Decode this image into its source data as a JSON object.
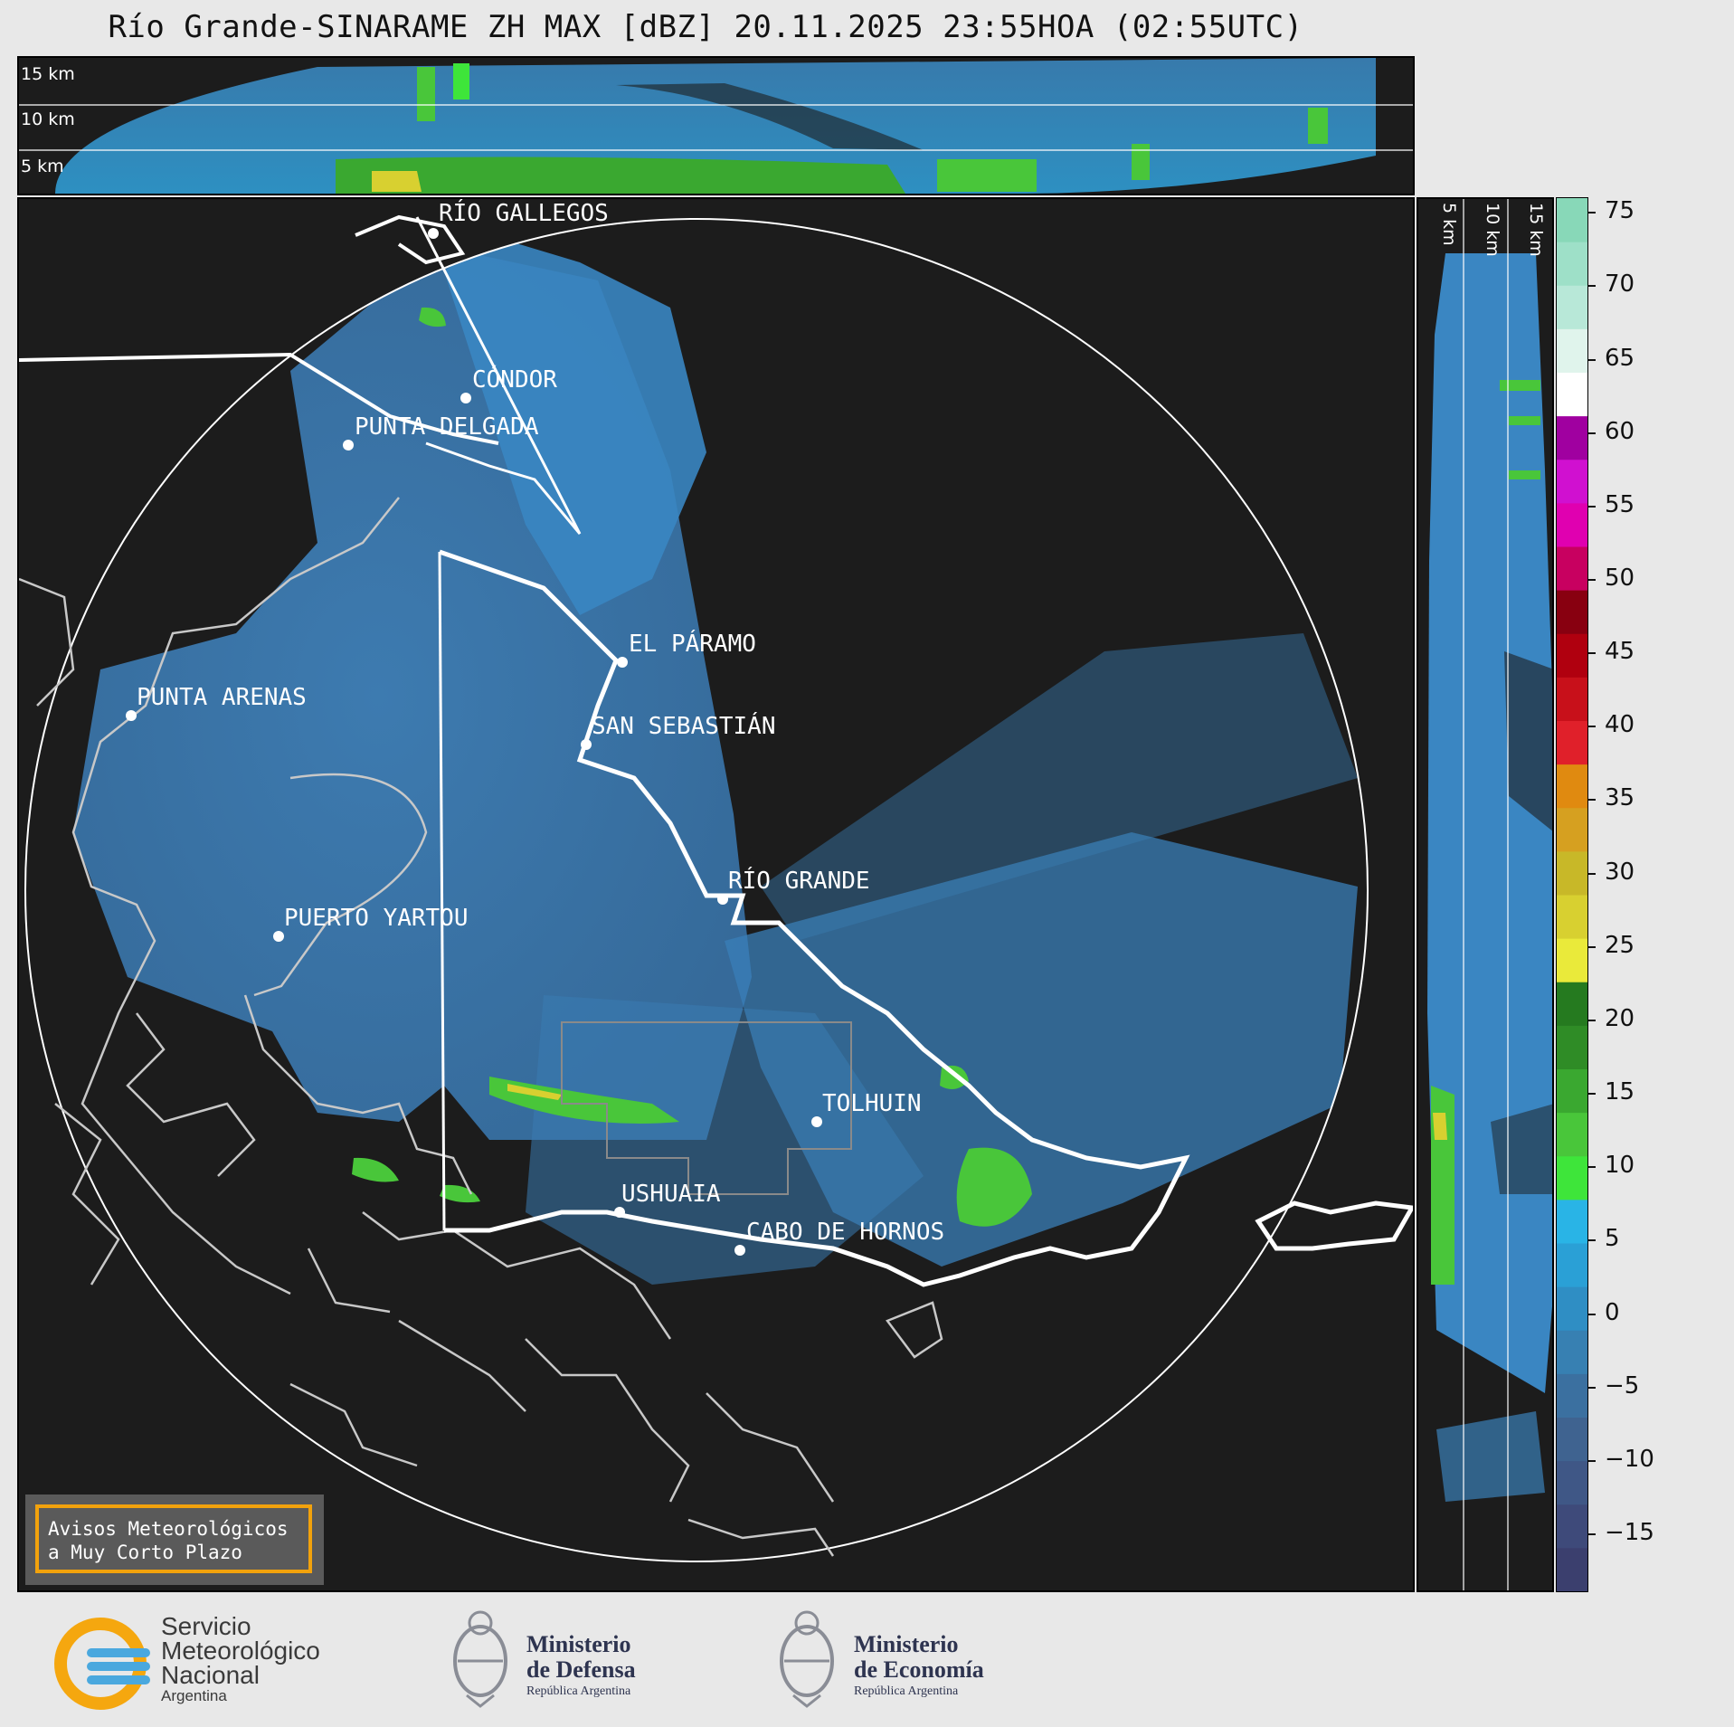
{
  "title": "Río Grande-SINARAME ZH MAX [dBZ] 20.11.2025 23:55HOA (02:55UTC)",
  "top_panel": {
    "height_labels": [
      "15 km",
      "10 km",
      "5 km"
    ]
  },
  "side_panel": {
    "height_labels": [
      "5 km",
      "10 km",
      "15 km"
    ]
  },
  "map": {
    "places": [
      "RÍO GALLEGOS",
      "CÓNDOR",
      "PUNTA DELGADA",
      "EL PÁRAMO",
      "PUNTA ARENAS",
      "SAN SEBASTIÁN",
      "RÍO GRANDE",
      "PUERTO YARTOU",
      "TOLHUIN",
      "USHUAIA",
      "CABO DE HORNOS"
    ]
  },
  "colorbar": {
    "unit": "dBZ",
    "ticks": [
      "75",
      "70",
      "65",
      "60",
      "55",
      "50",
      "45",
      "40",
      "35",
      "30",
      "25",
      "20",
      "15",
      "10",
      "5",
      "0",
      "−5",
      "−10",
      "−15"
    ],
    "colors": [
      "#3b3f6e",
      "#3e4a7a",
      "#3f5786",
      "#3f6390",
      "#3b70a0",
      "#3780b2",
      "#2f8ec4",
      "#2aa0d6",
      "#29b4e6",
      "#3ee53a",
      "#49c63a",
      "#3aa830",
      "#2f8c26",
      "#257a1f",
      "#eaea3a",
      "#d8d030",
      "#c8b828",
      "#d6a020",
      "#e08a10",
      "#e0202a",
      "#c8101a",
      "#b0000f",
      "#880010",
      "#c80060",
      "#e000b0",
      "#d010d0",
      "#a000a0",
      "#ffffff",
      "#e0f4ec",
      "#b8e8d8",
      "#9ee0c8",
      "#88d8b8"
    ],
    "range": [
      -19,
      76
    ]
  },
  "notice": {
    "line1": "Avisos Meteorológicos",
    "line2": "a Muy Corto Plazo"
  },
  "footer": {
    "smn": [
      "Servicio",
      "Meteorológico",
      "Nacional",
      "Argentina"
    ],
    "defensa": [
      "Ministerio",
      "de Defensa",
      "República Argentina"
    ],
    "economia": [
      "Ministerio",
      "de Economía",
      "República Argentina"
    ]
  }
}
